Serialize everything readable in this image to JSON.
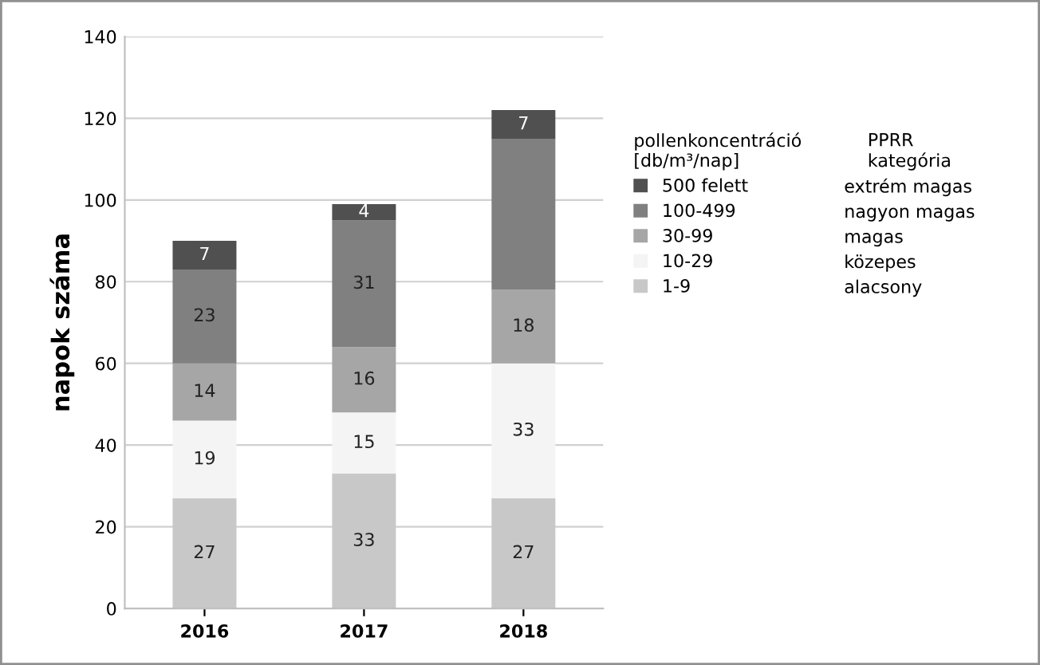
{
  "chart_data": {
    "type": "bar",
    "stacked": true,
    "ylabel": "napok száma",
    "categories": [
      "2016",
      "2017",
      "2018"
    ],
    "series": [
      {
        "name": "1-9",
        "color": "#c8c8c8",
        "values": [
          27,
          33,
          27
        ],
        "value_labels": [
          "27",
          "33",
          "27"
        ]
      },
      {
        "name": "10-29",
        "color": "#f4f4f4",
        "values": [
          19,
          15,
          33
        ],
        "value_labels": [
          "19",
          "15",
          "33"
        ]
      },
      {
        "name": "30-99",
        "color": "#a6a6a6",
        "values": [
          14,
          16,
          18
        ],
        "value_labels": [
          "14",
          "16",
          "18"
        ]
      },
      {
        "name": "100-499",
        "color": "#808080",
        "values": [
          23,
          31,
          37
        ],
        "value_labels": [
          "23",
          "31",
          null
        ]
      },
      {
        "name": "500 felett",
        "color": "#505050",
        "values": [
          7,
          4,
          7
        ],
        "value_labels": [
          "7",
          "4",
          "7"
        ]
      }
    ],
    "ylim": [
      0,
      140
    ],
    "yticks": [
      0,
      20,
      40,
      60,
      80,
      100,
      120,
      140
    ],
    "grid": "y",
    "legend": "right",
    "legend_title": "pollenkoncentráció\n[db/m³/nap]",
    "annotations": [
      "PPRR\nkategória",
      "extrém magas",
      "nagyon magas",
      "magas",
      "közepes",
      "alacsony"
    ]
  }
}
